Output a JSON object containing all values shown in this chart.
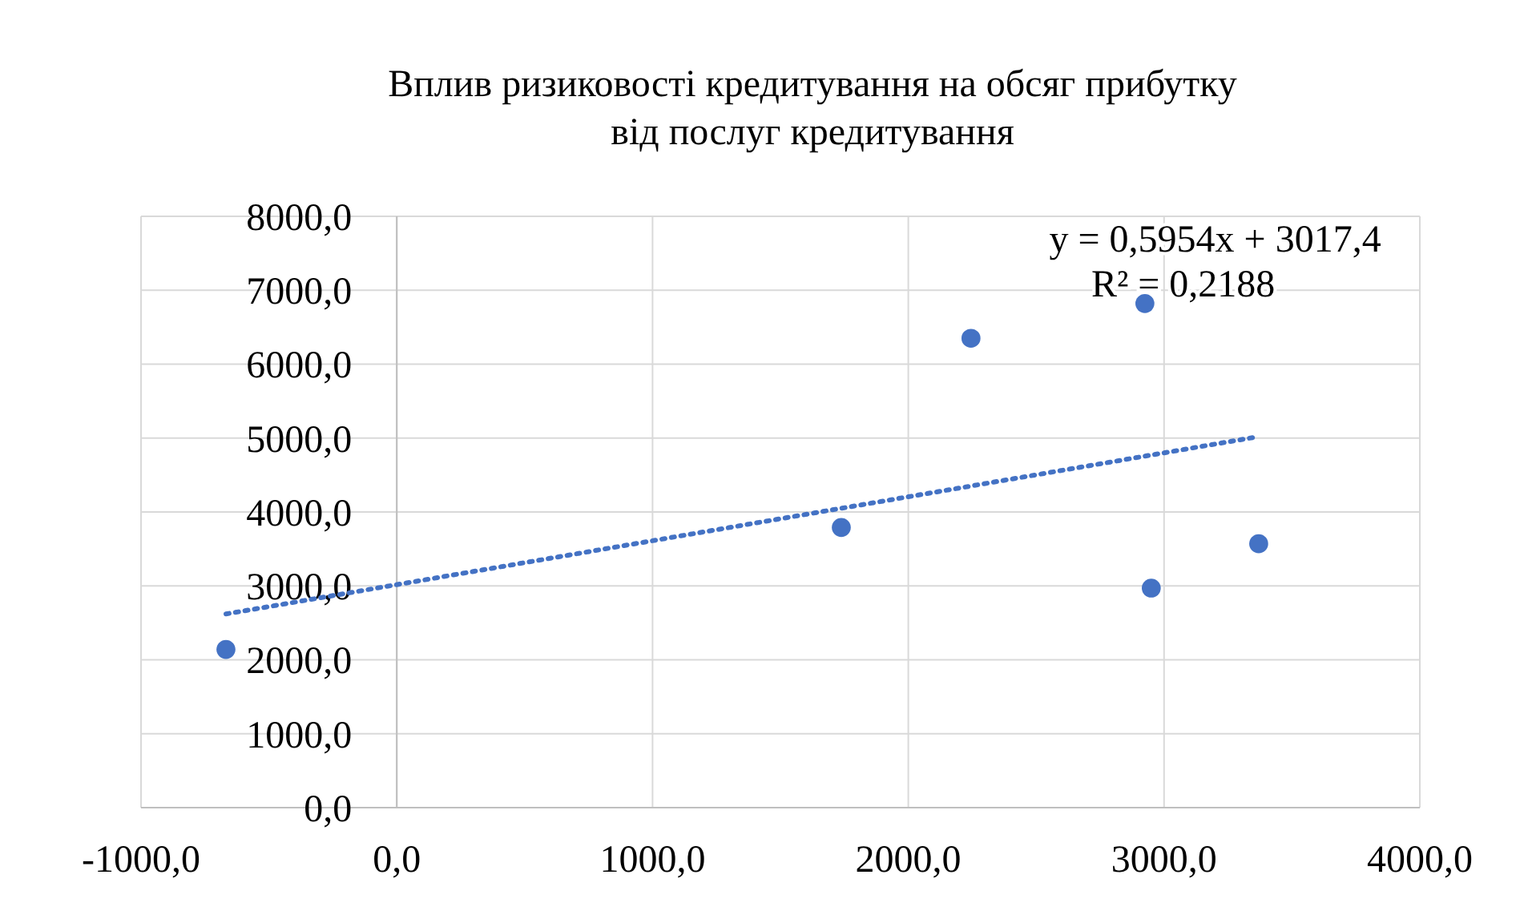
{
  "chart_data": {
    "type": "scatter",
    "title": "Вплив ризиковості кредитування на обсяг прибутку від послуг кредитування",
    "x": [
      -668,
      1738,
      2245,
      2925,
      2950,
      3370
    ],
    "series": [
      {
        "type": "scatter",
        "color": "#4472c4",
        "values": [
          2140,
          3790,
          6350,
          6820,
          2970,
          3570
        ]
      },
      {
        "type": "line",
        "color": "#4472c4",
        "line_style": "dotted",
        "marker": "none",
        "x": [
          -668,
          3370
        ],
        "values": [
          2620,
          5020
        ]
      }
    ],
    "xlim": [
      -1000,
      4000
    ],
    "xticks": [
      {
        "value": -1000,
        "label": "-1000,0"
      },
      {
        "value": 0,
        "label": "0,0"
      },
      {
        "value": 1000,
        "label": "1000,0"
      },
      {
        "value": 2000,
        "label": "2000,0"
      },
      {
        "value": 3000,
        "label": "3000,0"
      },
      {
        "value": 4000,
        "label": "4000,0"
      }
    ],
    "ylim": [
      0,
      8000
    ],
    "yticks": [
      {
        "value": 0,
        "label": "0,0"
      },
      {
        "value": 1000,
        "label": "1000,0"
      },
      {
        "value": 2000,
        "label": "2000,0"
      },
      {
        "value": 3000,
        "label": "3000,0"
      },
      {
        "value": 4000,
        "label": "4000,0"
      },
      {
        "value": 5000,
        "label": "5000,0"
      },
      {
        "value": 6000,
        "label": "6000,0"
      },
      {
        "value": 7000,
        "label": "7000,0"
      },
      {
        "value": 8000,
        "label": "8000,0"
      }
    ],
    "grid": true,
    "marker": "circle",
    "annotations": [
      "y = 0,5954x + 3017,4",
      "R² = 0,2188"
    ]
  }
}
